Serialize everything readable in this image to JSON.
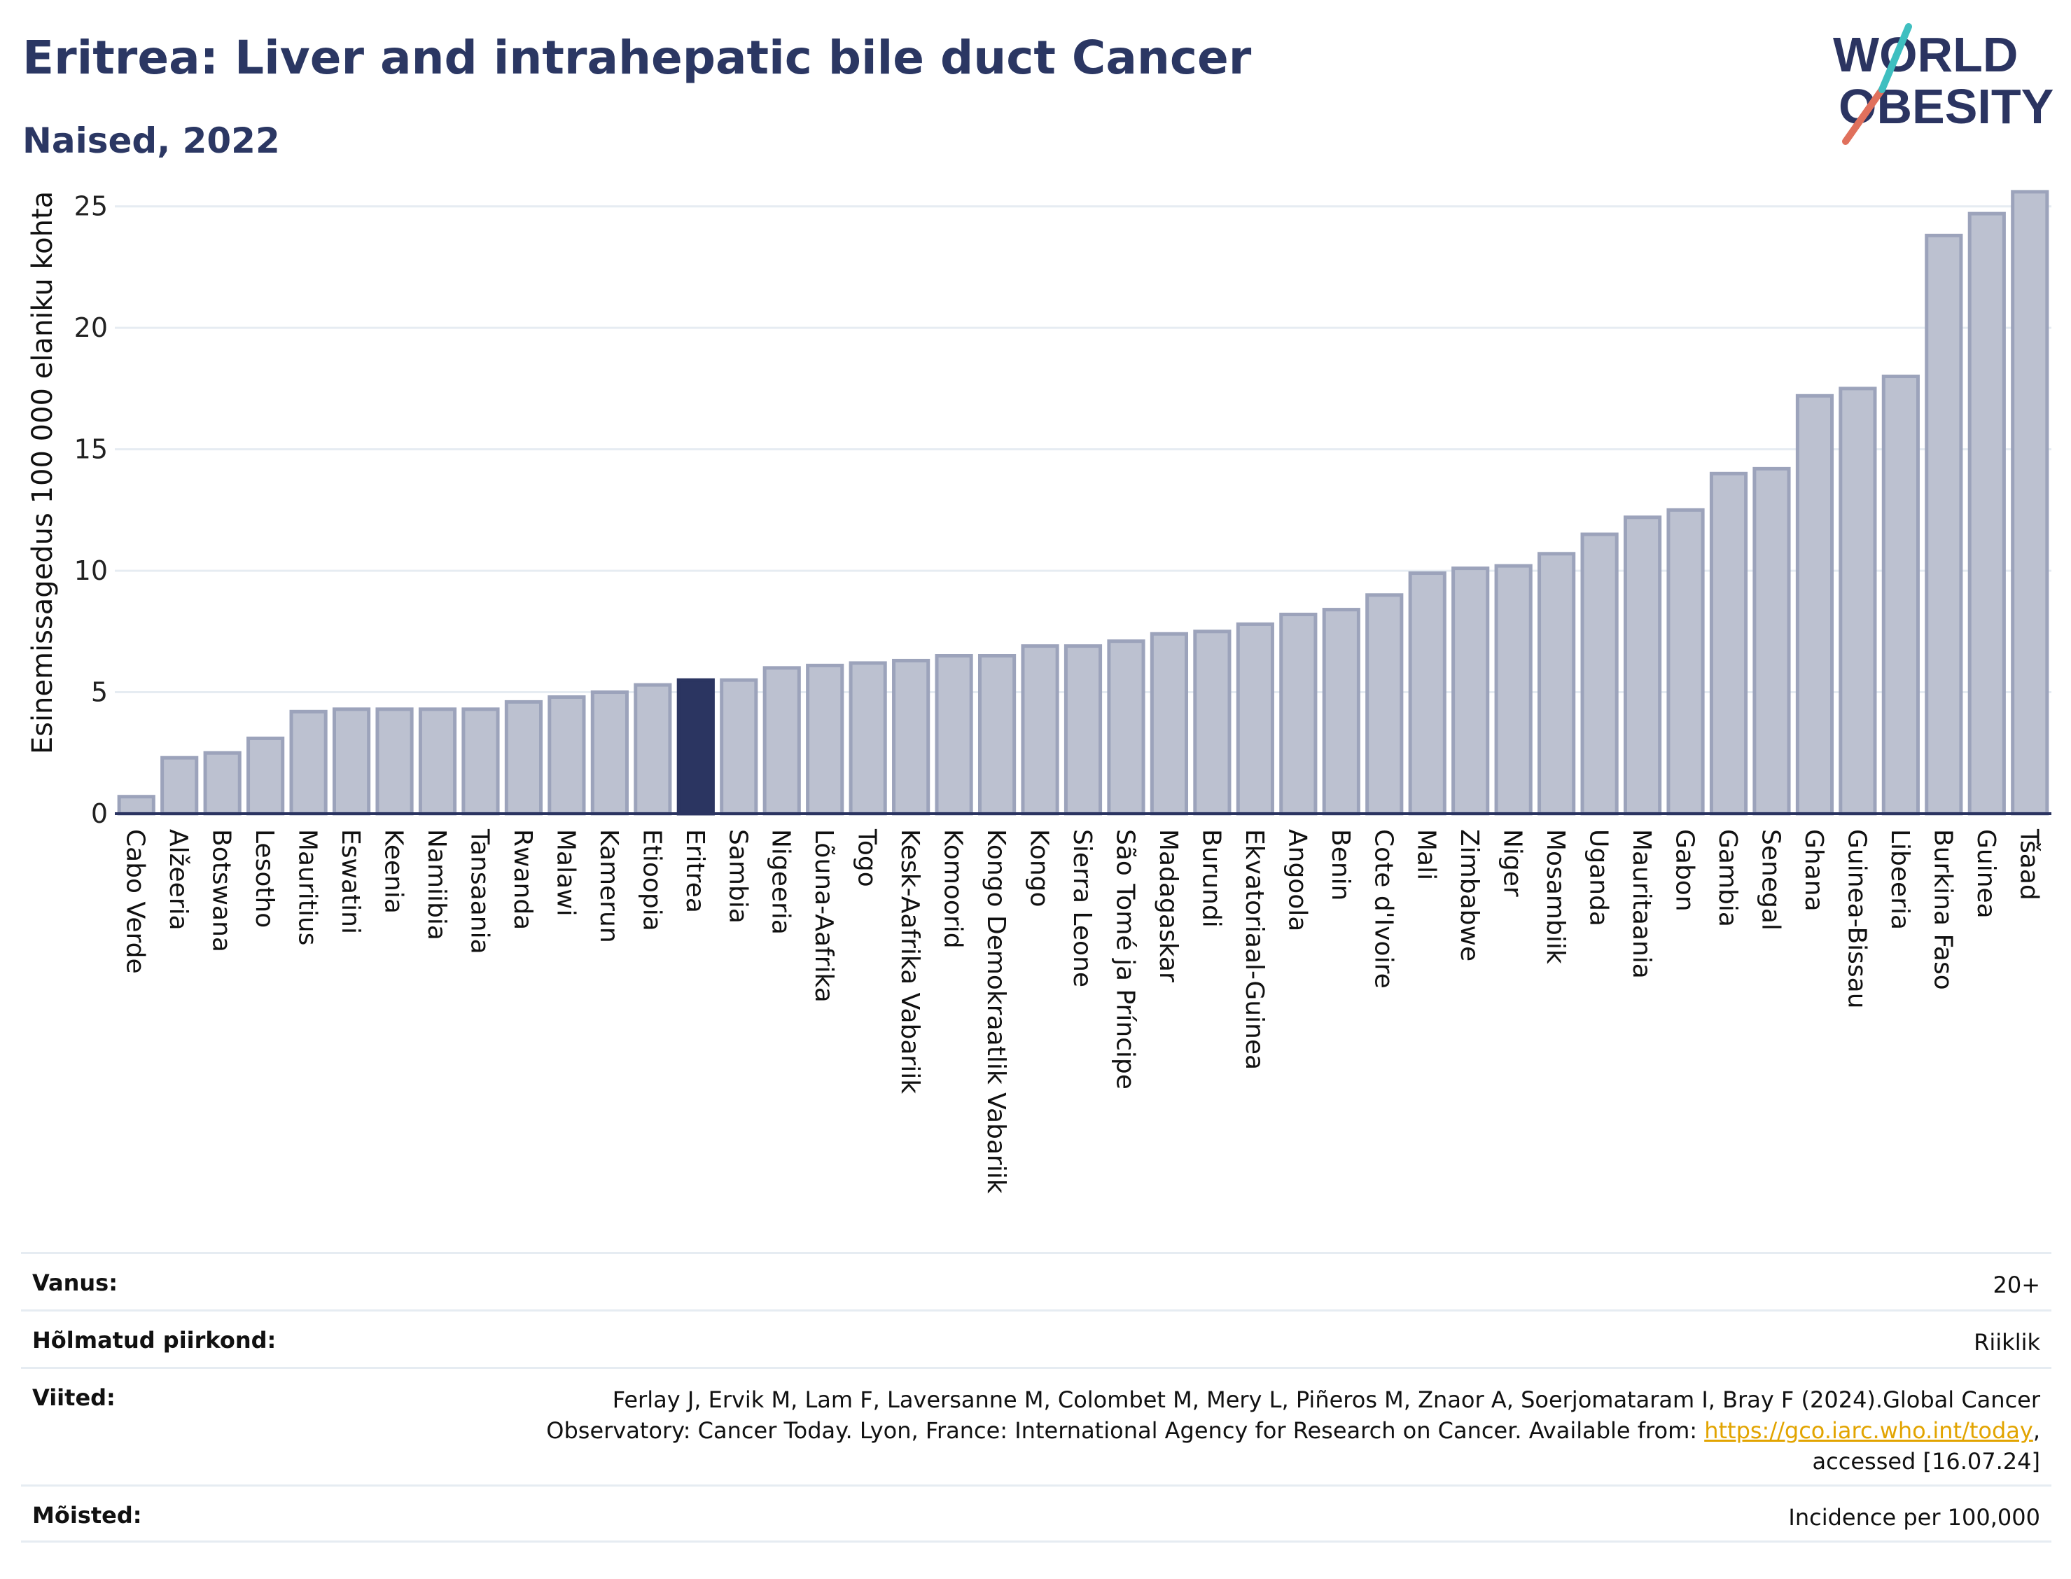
{
  "header": {
    "title": "Eritrea: Liver and intrahepatic bile duct Cancer",
    "subtitle": "Naised, 2022"
  },
  "logo": {
    "line1": "WORLD",
    "line2": "OBESITY"
  },
  "chart_data": {
    "type": "bar",
    "ylabel": "Esinemissagedus 100 000 elaniku kohta",
    "xlabel": "",
    "ylim": [
      0,
      26
    ],
    "yticks": [
      0,
      5,
      10,
      15,
      20,
      25
    ],
    "grid": true,
    "highlight": "Eritrea",
    "colors": {
      "bar": "#bcc1d0",
      "bar_border": "#9ca3bb",
      "highlight": "#2b3561",
      "axis": "#2b3461",
      "grid": "#e6ecf2"
    },
    "categories": [
      "Cabo Verde",
      "Alžeeria",
      "Botswana",
      "Lesotho",
      "Mauritius",
      "Eswatini",
      "Keenia",
      "Namiibia",
      "Tansaania",
      "Rwanda",
      "Malawi",
      "Kamerun",
      "Etioopia",
      "Eritrea",
      "Sambia",
      "Nigeeria",
      "Lõuna-Aafrika",
      "Togo",
      "Kesk-Aafrika Vabariik",
      "Komoorid",
      "Kongo Demokraatlik Vabariik",
      "Kongo",
      "Sierra Leone",
      "São Tomé ja Príncipe",
      "Madagaskar",
      "Burundi",
      "Ekvatoriaal-Guinea",
      "Angoola",
      "Benin",
      "Cote d'Ivoire",
      "Mali",
      "Zimbabwe",
      "Niger",
      "Mosambiik",
      "Uganda",
      "Mauritaania",
      "Gabon",
      "Gambia",
      "Senegal",
      "Ghana",
      "Guinea-Bissau",
      "Libeeria",
      "Burkina Faso",
      "Guinea",
      "Tšaad"
    ],
    "values": [
      0.7,
      2.3,
      2.5,
      3.1,
      4.2,
      4.3,
      4.3,
      4.3,
      4.3,
      4.6,
      4.8,
      5.0,
      5.3,
      5.5,
      5.5,
      6.0,
      6.1,
      6.2,
      6.3,
      6.5,
      6.5,
      6.9,
      6.9,
      7.1,
      7.4,
      7.5,
      7.8,
      8.2,
      8.4,
      9.0,
      9.9,
      10.1,
      10.2,
      10.7,
      11.5,
      12.2,
      12.5,
      14.0,
      14.2,
      17.2,
      17.5,
      18.0,
      23.8,
      24.7,
      25.6
    ]
  },
  "info": {
    "age_label": "Vanus:",
    "age_value": "20+",
    "region_label": "Hõlmatud piirkond:",
    "region_value": "Riiklik",
    "refs_label": "Viited:",
    "refs_line1": "Ferlay J, Ervik M, Lam F, Laversanne M, Colombet M, Mery L, Piñeros M, Znaor A, Soerjomataram I, Bray F (2024).Global Cancer",
    "refs_line2": "Observatory: Cancer Today. Lyon, France: International Agency for Research on Cancer. Available from: ",
    "refs_link": "https://gco.iarc.who.int/today",
    "refs_line2_end": ",",
    "refs_line3": "accessed [16.07.24]",
    "def_label": "Mõisted:",
    "def_value": "Incidence per 100,000"
  }
}
